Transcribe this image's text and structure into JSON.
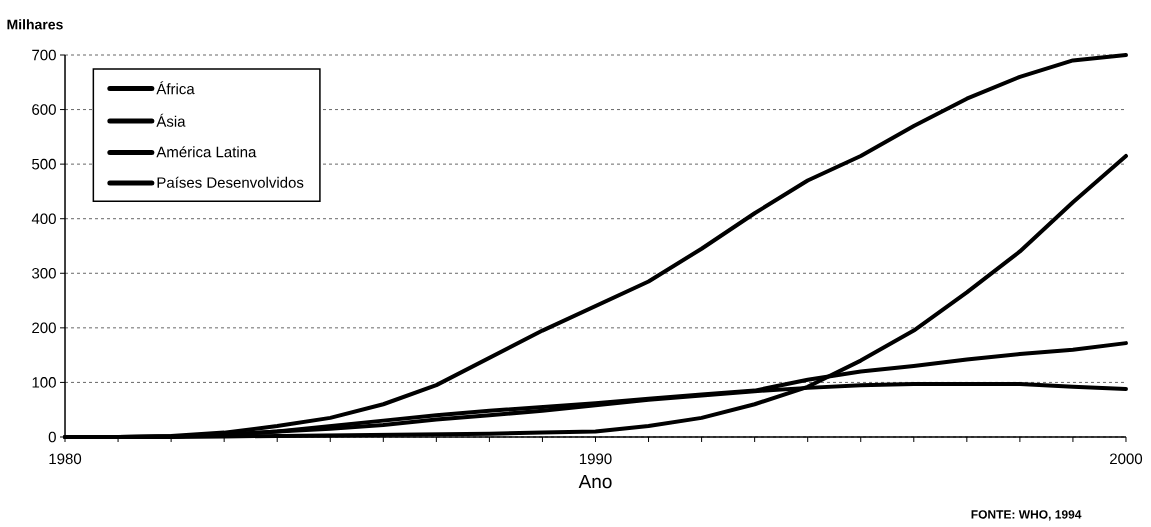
{
  "chart_data": {
    "type": "line",
    "xlabel": "Ano",
    "ylabel": "Milhares",
    "x": [
      1980,
      1981,
      1982,
      1983,
      1984,
      1985,
      1986,
      1987,
      1988,
      1989,
      1990,
      1991,
      1992,
      1993,
      1994,
      1995,
      1996,
      1997,
      1998,
      1999,
      2000
    ],
    "series": [
      {
        "name": "África",
        "color": "#000000",
        "values": [
          0,
          0,
          2,
          8,
          20,
          35,
          60,
          95,
          145,
          195,
          240,
          285,
          345,
          410,
          470,
          515,
          570,
          620,
          660,
          690,
          700
        ]
      },
      {
        "name": "Ásia",
        "color": "#000000",
        "values": [
          0,
          0,
          0,
          1,
          2,
          3,
          4,
          5,
          6,
          8,
          10,
          20,
          35,
          60,
          92,
          140,
          195,
          265,
          340,
          430,
          515
        ]
      },
      {
        "name": "América Latina",
        "color": "#000000",
        "values": [
          0,
          0,
          1,
          4,
          10,
          20,
          30,
          40,
          48,
          55,
          62,
          70,
          78,
          85,
          105,
          120,
          130,
          142,
          152,
          160,
          172
        ]
      },
      {
        "name": "Países Desenvolvidos",
        "color": "#000000",
        "values": [
          0,
          0,
          1,
          4,
          10,
          15,
          22,
          32,
          40,
          48,
          58,
          68,
          76,
          84,
          90,
          95,
          97,
          97,
          97,
          92,
          88
        ]
      }
    ],
    "xlim": [
      1980,
      2000
    ],
    "xticks": [
      1980,
      {
        "value": 1981,
        "label": null
      },
      {
        "value": 1982,
        "label": null
      },
      {
        "value": 1983,
        "label": null
      },
      {
        "value": 1984,
        "label": null
      },
      {
        "value": 1985,
        "label": null
      },
      {
        "value": 1986,
        "label": null
      },
      {
        "value": 1987,
        "label": null
      },
      {
        "value": 1988,
        "label": null
      },
      {
        "value": 1989,
        "label": null
      },
      1990,
      {
        "value": 1991,
        "label": null
      },
      {
        "value": 1992,
        "label": null
      },
      {
        "value": 1993,
        "label": null
      },
      {
        "value": 1994,
        "label": null
      },
      {
        "value": 1995,
        "label": null
      },
      {
        "value": 1996,
        "label": null
      },
      {
        "value": 1997,
        "label": null
      },
      {
        "value": 1998,
        "label": null
      },
      {
        "value": 1999,
        "label": null
      },
      2000
    ],
    "ylim": [
      0,
      700
    ],
    "yticks": [
      0,
      100,
      200,
      300,
      400,
      500,
      600,
      700
    ],
    "grid": "y",
    "legend": "top left",
    "marker": "none",
    "line_style": "solid",
    "annotations": [
      "FONTE: WHO, 1994"
    ]
  }
}
